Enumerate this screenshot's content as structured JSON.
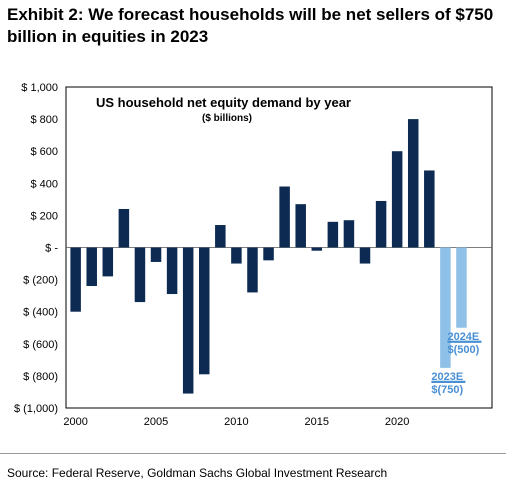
{
  "exhibit_title": "Exhibit 2: We forecast households will be net sellers of $750 billion in equities in 2023",
  "source": "Source: Federal Reserve, Goldman Sachs Global Investment Research",
  "colors": {
    "actual_bar": "#0d2b52",
    "forecast_bar": "#8fc1e8",
    "forecast_label": "#4a90d4",
    "frame": "#000000"
  },
  "chart_data": {
    "type": "bar",
    "title": "US household net equity demand by year",
    "subtitle": "($ billions)",
    "xlabel": "",
    "ylabel": "",
    "ylim": [
      -1000,
      1000
    ],
    "yticks": [
      1000,
      800,
      600,
      400,
      200,
      0,
      -200,
      -400,
      -600,
      -800,
      -1000
    ],
    "ytick_labels": [
      "$ 1,000",
      "$ 800",
      "$ 600",
      "$ 400",
      "$ 200",
      "$ -",
      "$ (200)",
      "$ (400)",
      "$ (600)",
      "$ (800)",
      "$ (1,000)"
    ],
    "xticks": [
      2000,
      2005,
      2010,
      2015,
      2020
    ],
    "grid": false,
    "legend": "none",
    "series": [
      {
        "x": [
          2000,
          2001,
          2002,
          2003,
          2004,
          2005,
          2006,
          2007,
          2008,
          2009,
          2010,
          2011,
          2012,
          2013,
          2014,
          2015,
          2016,
          2017,
          2018,
          2019,
          2020,
          2021,
          2022
        ],
        "values": [
          -400,
          -240,
          -180,
          240,
          -340,
          -90,
          -290,
          -910,
          -790,
          140,
          -100,
          -280,
          -80,
          380,
          270,
          -20,
          160,
          170,
          -100,
          290,
          600,
          800,
          480
        ]
      },
      {
        "x": [
          2023,
          2024
        ],
        "values": [
          -750,
          -500
        ],
        "forecast": true
      }
    ],
    "annotations": [
      {
        "x": 2023,
        "year_label": "2023E",
        "value_label": "$(750)"
      },
      {
        "x": 2024,
        "year_label": "2024E",
        "value_label": "$(500)"
      }
    ]
  }
}
